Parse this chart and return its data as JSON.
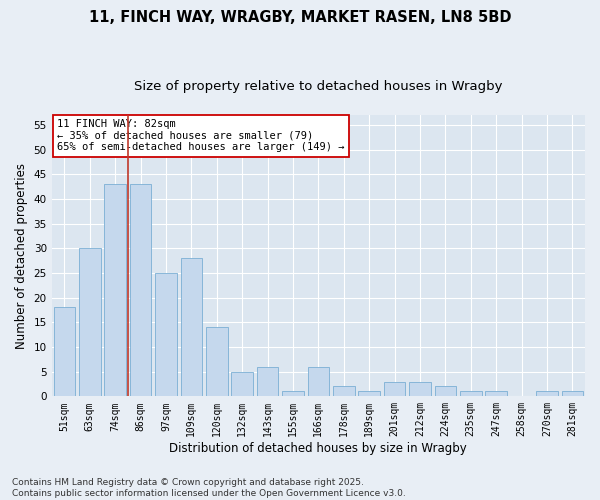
{
  "title_line1": "11, FINCH WAY, WRAGBY, MARKET RASEN, LN8 5BD",
  "title_line2": "Size of property relative to detached houses in Wragby",
  "xlabel": "Distribution of detached houses by size in Wragby",
  "ylabel": "Number of detached properties",
  "categories": [
    "51sqm",
    "63sqm",
    "74sqm",
    "86sqm",
    "97sqm",
    "109sqm",
    "120sqm",
    "132sqm",
    "143sqm",
    "155sqm",
    "166sqm",
    "178sqm",
    "189sqm",
    "201sqm",
    "212sqm",
    "224sqm",
    "235sqm",
    "247sqm",
    "258sqm",
    "270sqm",
    "281sqm"
  ],
  "values": [
    18,
    30,
    43,
    43,
    25,
    28,
    14,
    5,
    6,
    1,
    6,
    2,
    1,
    3,
    3,
    2,
    1,
    1,
    0,
    1,
    1
  ],
  "bar_color": "#c5d8ed",
  "bar_edgecolor": "#7bafd4",
  "vline_color": "#c0392b",
  "annotation_text": "11 FINCH WAY: 82sqm\n← 35% of detached houses are smaller (79)\n65% of semi-detached houses are larger (149) →",
  "ylim": [
    0,
    57
  ],
  "yticks": [
    0,
    5,
    10,
    15,
    20,
    25,
    30,
    35,
    40,
    45,
    50,
    55
  ],
  "fig_background_color": "#e8eef5",
  "plot_background_color": "#dce6f0",
  "grid_color": "#ffffff",
  "footnote": "Contains HM Land Registry data © Crown copyright and database right 2025.\nContains public sector information licensed under the Open Government Licence v3.0."
}
